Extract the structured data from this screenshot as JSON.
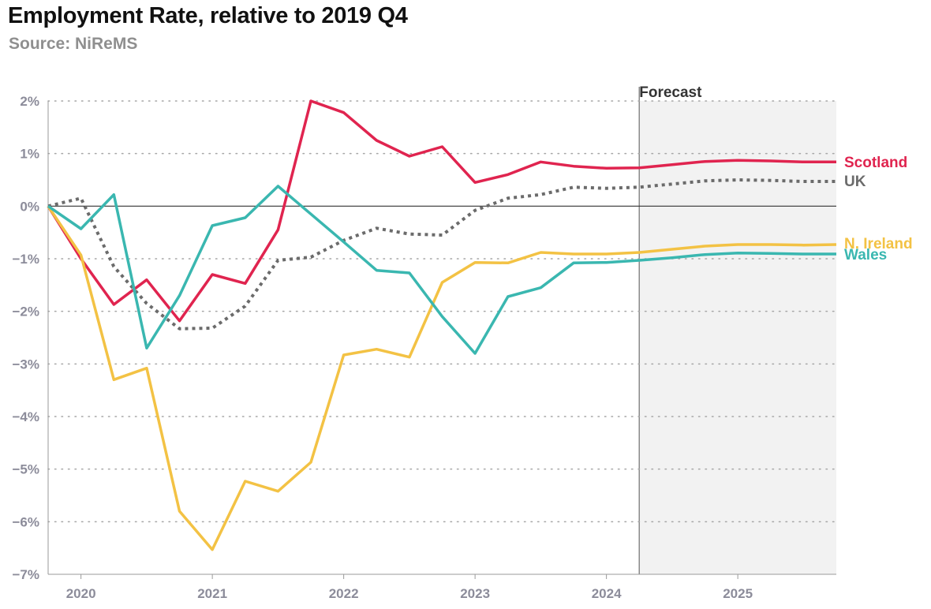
{
  "header": {
    "title": "Employment Rate, relative to 2019 Q4",
    "subtitle": "Source: NiReMS"
  },
  "chart_data": {
    "type": "line",
    "title": "Employment Rate, relative to 2019 Q4",
    "subtitle": "Source: NiReMS",
    "xlabel": "",
    "ylabel": "",
    "x": [
      2019.75,
      2020.0,
      2020.25,
      2020.5,
      2020.75,
      2021.0,
      2021.25,
      2021.5,
      2021.75,
      2022.0,
      2022.25,
      2022.5,
      2022.75,
      2023.0,
      2023.25,
      2023.5,
      2023.75,
      2024.0,
      2024.25,
      2024.5,
      2024.75,
      2025.0,
      2025.25,
      2025.5,
      2025.75
    ],
    "xlim": [
      2019.75,
      2025.75
    ],
    "ylim": [
      -7,
      2
    ],
    "x_ticks": [
      {
        "value": 2020,
        "label": "2020"
      },
      {
        "value": 2021,
        "label": "2021"
      },
      {
        "value": 2022,
        "label": "2022"
      },
      {
        "value": 2023,
        "label": "2023"
      },
      {
        "value": 2024,
        "label": "2024"
      },
      {
        "value": 2025,
        "label": "2025"
      }
    ],
    "y_ticks": [
      {
        "value": 2,
        "label": "2%"
      },
      {
        "value": 1,
        "label": "1%"
      },
      {
        "value": 0,
        "label": "0%"
      },
      {
        "value": -1,
        "label": "−1%"
      },
      {
        "value": -2,
        "label": "−2%"
      },
      {
        "value": -3,
        "label": "−3%"
      },
      {
        "value": -4,
        "label": "−4%"
      },
      {
        "value": -5,
        "label": "−5%"
      },
      {
        "value": -6,
        "label": "−6%"
      },
      {
        "value": -7,
        "label": "−7%"
      }
    ],
    "grid": "horizontal dotted",
    "forecast": {
      "start": 2024.25,
      "label": "Forecast"
    },
    "legend": "direct labels at right end of lines",
    "series": [
      {
        "name": "Scotland",
        "color": "#e0244f",
        "style": "solid",
        "values": [
          0,
          -1.0,
          -1.87,
          -1.4,
          -2.18,
          -1.3,
          -1.47,
          -0.45,
          2.0,
          1.78,
          1.25,
          0.95,
          1.13,
          0.45,
          0.6,
          0.84,
          0.76,
          0.72,
          0.73,
          0.79,
          0.85,
          0.87,
          0.86,
          0.84,
          0.84
        ]
      },
      {
        "name": "UK",
        "color": "#6b6b6b",
        "style": "dotted",
        "values": [
          0,
          0.15,
          -1.15,
          -1.85,
          -2.33,
          -2.32,
          -1.9,
          -1.03,
          -0.97,
          -0.65,
          -0.42,
          -0.53,
          -0.55,
          -0.08,
          0.15,
          0.22,
          0.36,
          0.34,
          0.36,
          0.42,
          0.48,
          0.5,
          0.49,
          0.47,
          0.47
        ]
      },
      {
        "name": "N. Ireland",
        "color": "#f3c244",
        "style": "solid",
        "values": [
          0,
          -0.93,
          -3.3,
          -3.08,
          -5.8,
          -6.53,
          -5.23,
          -5.42,
          -4.87,
          -2.83,
          -2.72,
          -2.87,
          -1.45,
          -1.07,
          -1.08,
          -0.88,
          -0.91,
          -0.91,
          -0.88,
          -0.82,
          -0.76,
          -0.73,
          -0.73,
          -0.74,
          -0.73
        ]
      },
      {
        "name": "Wales",
        "color": "#3ab7b0",
        "style": "solid",
        "values": [
          0,
          -0.43,
          0.22,
          -2.7,
          -1.7,
          -0.37,
          -0.22,
          0.38,
          -0.15,
          -0.68,
          -1.22,
          -1.27,
          -2.1,
          -2.8,
          -1.72,
          -1.55,
          -1.08,
          -1.07,
          -1.03,
          -0.98,
          -0.92,
          -0.89,
          -0.9,
          -0.91,
          -0.91
        ]
      }
    ]
  }
}
